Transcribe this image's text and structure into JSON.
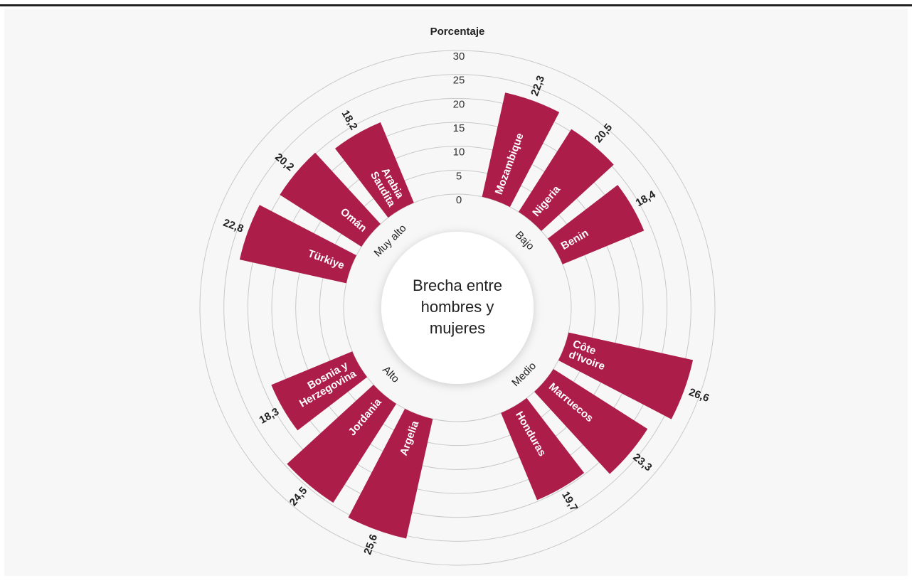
{
  "chart_data": {
    "type": "radial_bar",
    "title": "Porcentaje",
    "center_label": [
      "Brecha entre",
      "hombres y",
      "mujeres"
    ],
    "group_labels": [
      "Bajo",
      "Medio",
      "Alto",
      "Muy alto"
    ],
    "categories": [
      "Mozambique",
      "Nigeria",
      "Benin",
      "Côte d'Ivoire",
      "Marruecos",
      "Honduras",
      "Argelia",
      "Jordania",
      "Bosnia y Herzegovina",
      "Türkiye",
      "Omán",
      "Arabia Saudita"
    ],
    "values": [
      22.3,
      20.5,
      18.4,
      26.6,
      23.3,
      19.7,
      25.6,
      24.5,
      18.3,
      22.8,
      20.2,
      18.2
    ],
    "value_labels": [
      "22,3",
      "20,5",
      "18,4",
      "26,6",
      "23,3",
      "19,7",
      "25,6",
      "24,5",
      "18,3",
      "22,8",
      "20,2",
      "18,2"
    ],
    "color": "#ad1d49",
    "ylim": [
      0,
      30
    ],
    "yticks": [
      0,
      5,
      10,
      15,
      20,
      25,
      30
    ],
    "grid": true
  }
}
